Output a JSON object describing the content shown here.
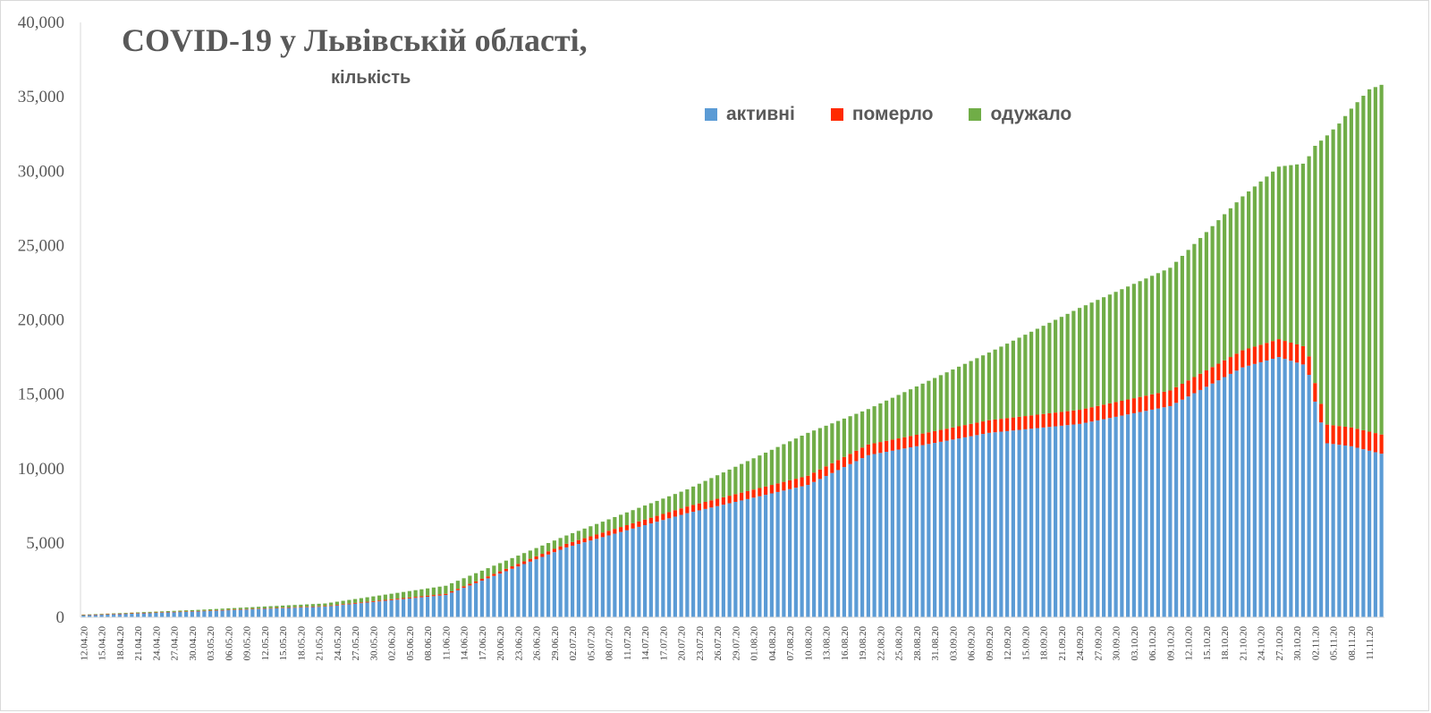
{
  "chart_data": {
    "type": "bar",
    "stacked": true,
    "title": "COVID-19 у Львівській області,",
    "subtitle": "кількість",
    "xlabel": "",
    "ylabel": "",
    "ylim": [
      0,
      40000
    ],
    "y_ticks": [
      "0",
      "5,000",
      "10,000",
      "15,000",
      "20,000",
      "25,000",
      "30,000",
      "35,000",
      "40,000"
    ],
    "grid": false,
    "legend_position": "top-right",
    "x_start": "2020-04-12",
    "x_end": "2020-11-13",
    "x_tick_labels": [
      "12.04.20",
      "15.04.20",
      "18.04.20",
      "21.04.20",
      "24.04.20",
      "27.04.20",
      "30.04.20",
      "03.05.20",
      "06.05.20",
      "09.05.20",
      "12.05.20",
      "15.05.20",
      "18.05.20",
      "21.05.20",
      "24.05.20",
      "27.05.20",
      "30.05.20",
      "02.06.20",
      "05.06.20",
      "08.06.20",
      "11.06.20",
      "14.06.20",
      "17.06.20",
      "20.06.20",
      "23.06.20",
      "26.06.20",
      "29.06.20",
      "02.07.20",
      "05.07.20",
      "08.07.20",
      "11.07.20",
      "14.07.20",
      "17.07.20",
      "20.07.20",
      "23.07.20",
      "26.07.20",
      "29.07.20",
      "01.08.20",
      "04.08.20",
      "07.08.20",
      "10.08.20",
      "13.08.20",
      "16.08.20",
      "19.08.20",
      "22.08.20",
      "25.08.20",
      "28.08.20",
      "31.08.20",
      "03.09.20",
      "06.09.20",
      "09.09.20",
      "12.09.20",
      "15.09.20",
      "18.09.20",
      "21.09.20",
      "24.09.20",
      "27.09.20",
      "30.09.20",
      "03.10.20",
      "06.10.20",
      "09.10.20",
      "12.10.20",
      "15.10.20",
      "18.10.20",
      "21.10.20",
      "24.10.20",
      "27.10.20",
      "30.10.20",
      "02.11.20",
      "05.11.20",
      "08.11.20",
      "11.11.20"
    ],
    "series": [
      {
        "name": "активні",
        "color": "#5b9bd5"
      },
      {
        "name": "померло",
        "color": "#ff2a00"
      },
      {
        "name": "одужало",
        "color": "#70ad47"
      }
    ],
    "keyframes": {
      "day_index": [
        0,
        20,
        40,
        60,
        80,
        100,
        120,
        130,
        150,
        165,
        180,
        192,
        198,
        202,
        203,
        204,
        206,
        208,
        210,
        213,
        215
      ],
      "total": [
        180,
        520,
        930,
        2120,
        5500,
        8600,
        12400,
        14000,
        17800,
        20800,
        23500,
        28300,
        30300,
        30500,
        31000,
        31700,
        32400,
        33200,
        34200,
        35500,
        35800
      ],
      "died": [
        8,
        20,
        40,
        80,
        240,
        450,
        620,
        720,
        850,
        950,
        1050,
        1150,
        1200,
        1230,
        1240,
        1250,
        1255,
        1260,
        1270,
        1280,
        1290
      ],
      "active": [
        150,
        420,
        720,
        1500,
        4700,
        7000,
        8900,
        10900,
        12400,
        13000,
        14200,
        16800,
        17500,
        17000,
        16300,
        14500,
        11700,
        11600,
        11500,
        11200,
        11000
      ]
    }
  },
  "legend": {
    "active_label": "активні",
    "died_label": "померло",
    "recovered_label": "одужало"
  }
}
